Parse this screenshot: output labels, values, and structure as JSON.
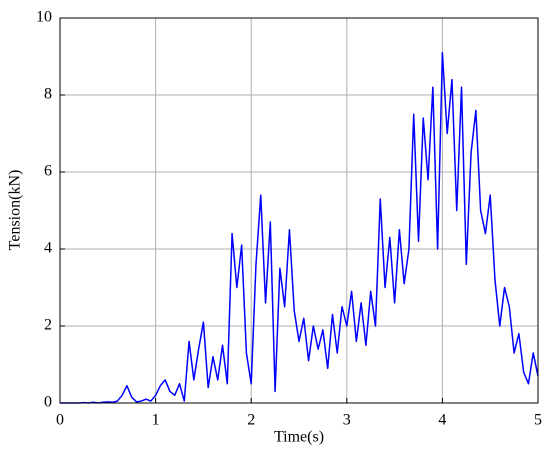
{
  "chart_data": {
    "type": "line",
    "xlabel": "Time(s)",
    "ylabel": "Tension(kN)",
    "x": [
      0,
      0.05,
      0.1,
      0.15,
      0.2,
      0.25,
      0.3,
      0.35,
      0.4,
      0.45,
      0.5,
      0.55,
      0.6,
      0.65,
      0.7,
      0.75,
      0.8,
      0.85,
      0.9,
      0.95,
      1,
      1.05,
      1.1,
      1.15,
      1.2,
      1.25,
      1.3,
      1.35,
      1.4,
      1.45,
      1.5,
      1.55,
      1.6,
      1.65,
      1.7,
      1.75,
      1.8,
      1.85,
      1.9,
      1.95,
      2,
      2.05,
      2.1,
      2.15,
      2.2,
      2.25,
      2.3,
      2.35,
      2.4,
      2.45,
      2.5,
      2.55,
      2.6,
      2.65,
      2.7,
      2.75,
      2.8,
      2.85,
      2.9,
      2.95,
      3,
      3.05,
      3.1,
      3.15,
      3.2,
      3.25,
      3.3,
      3.35,
      3.4,
      3.45,
      3.5,
      3.55,
      3.6,
      3.65,
      3.7,
      3.75,
      3.8,
      3.85,
      3.9,
      3.95,
      4,
      4.05,
      4.1,
      4.15,
      4.2,
      4.25,
      4.3,
      4.35,
      4.4,
      4.45,
      4.5,
      4.55,
      4.6,
      4.65,
      4.7,
      4.75,
      4.8,
      4.85,
      4.9,
      4.95,
      5
    ],
    "series": [
      {
        "color": "#0000ff",
        "values": [
          0,
          0,
          0,
          0,
          0,
          0.01,
          0,
          0.02,
          0,
          0.02,
          0.03,
          0.02,
          0.05,
          0.2,
          0.45,
          0.15,
          0.03,
          0.05,
          0.1,
          0.05,
          0.2,
          0.45,
          0.6,
          0.3,
          0.2,
          0.5,
          0.05,
          1.6,
          0.6,
          1.4,
          2.1,
          0.4,
          1.2,
          0.6,
          1.5,
          0.5,
          4.4,
          3.0,
          4.1,
          1.3,
          0.5,
          3.6,
          5.4,
          2.6,
          4.7,
          0.3,
          3.5,
          2.5,
          4.5,
          2.4,
          1.6,
          2.2,
          1.1,
          2.0,
          1.4,
          1.9,
          0.9,
          2.3,
          1.3,
          2.5,
          2.0,
          2.9,
          1.6,
          2.6,
          1.5,
          2.9,
          2.0,
          5.3,
          3.0,
          4.3,
          2.6,
          4.5,
          3.1,
          4.0,
          7.5,
          4.2,
          7.4,
          5.8,
          8.2,
          4.0,
          9.1,
          7.0,
          8.4,
          5.0,
          8.2,
          3.6,
          6.5,
          7.6,
          5.0,
          4.4,
          5.4,
          3.2,
          2.0,
          3.0,
          2.5,
          1.3,
          1.8,
          0.8,
          0.5,
          1.3,
          0.7
        ]
      }
    ],
    "xlim": [
      0,
      5
    ],
    "xticks": [
      0,
      1,
      2,
      3,
      4,
      5
    ],
    "ylim": [
      0,
      10
    ],
    "yticks": [
      0,
      2,
      4,
      6,
      8,
      10
    ],
    "grid": true
  }
}
